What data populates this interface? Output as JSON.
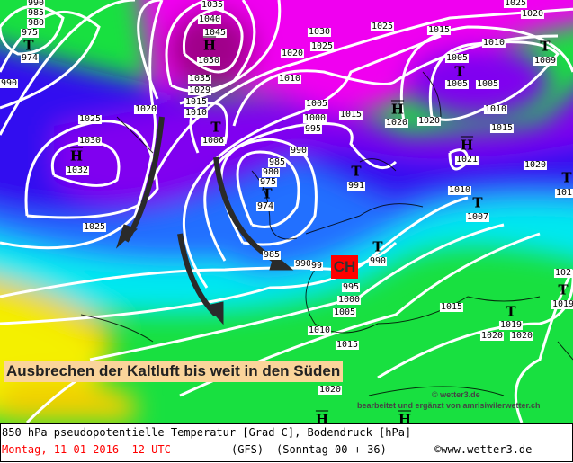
{
  "map": {
    "caption": "Ausbrechen der Kaltluft bis weit in den Süden",
    "region_marker": "CH",
    "credit_1": "© wetter3.de",
    "credit_2": "bearbeitet und ergänzt von amrisiwilerwetter.ch",
    "high_symbol": "H",
    "low_symbol": "T",
    "pressure_labels": [
      "1035",
      "1040",
      "1045",
      "1050",
      "1035",
      "1029",
      "1030",
      "1025",
      "1020",
      "1010",
      "1005",
      "1015",
      "1010",
      "1006",
      "1000",
      "995",
      "990",
      "985",
      "980",
      "975",
      "974",
      "985",
      "990",
      "99",
      "995",
      "1000",
      "1005",
      "991",
      "990",
      "1025",
      "1015",
      "1020",
      "1025",
      "1020",
      "1015",
      "1010",
      "1005",
      "1005",
      "1005",
      "1009",
      "1010",
      "1015",
      "1020",
      "1021",
      "1020",
      "1010",
      "1007",
      "101",
      "1015",
      "1019",
      "1020",
      "1020",
      "102",
      "1019",
      "1010",
      "1015",
      "1020",
      "990",
      "985",
      "980",
      "975",
      "974",
      "990",
      "1020",
      "1025",
      "1030",
      "1032",
      "1025"
    ],
    "colors": {
      "yellow": "#f4f000",
      "orange": "#f0c400",
      "green": "#18e040",
      "cyan": "#00e8f0",
      "blue": "#2060ff",
      "indigo": "#3010f0",
      "violet": "#8000f0",
      "magenta": "#f000f0",
      "red": "#ff0000",
      "caption_bg": "#fad49a"
    }
  },
  "footer": {
    "line1": "850 hPa pseudopotentielle Temperatur [Grad C], Bodendruck [hPa]",
    "date": "Montag, 11-01-2016  12 UTC",
    "model": "(GFS)",
    "run": "(Sonntag 00 + 36)",
    "copyright": "©www.wetter3.de",
    "date_color": "#ff0000"
  }
}
